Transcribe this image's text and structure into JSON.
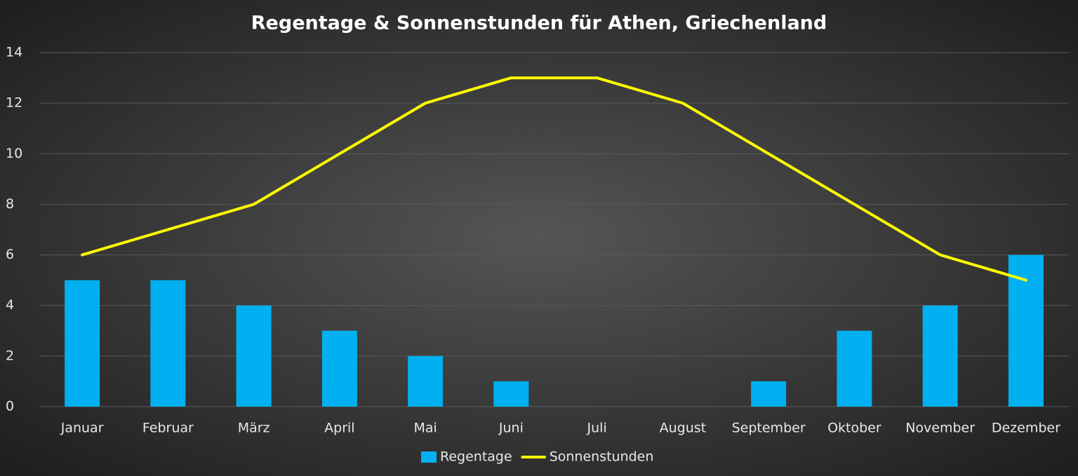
{
  "chart_data": {
    "type": "combo",
    "title": "Regentage & Sonnenstunden für Athen, Griechenland",
    "categories": [
      "Januar",
      "Februar",
      "März",
      "April",
      "Mai",
      "Juni",
      "Juli",
      "August",
      "September",
      "Oktober",
      "November",
      "Dezember"
    ],
    "series": [
      {
        "name": "Regentage",
        "type": "bar",
        "color": "#00b0f0",
        "values": [
          5,
          5,
          4,
          3,
          2,
          1,
          0,
          0,
          1,
          3,
          4,
          6
        ]
      },
      {
        "name": "Sonnenstunden",
        "type": "line",
        "color": "#ffff00",
        "values": [
          6,
          7,
          8,
          10,
          12,
          13,
          13,
          12,
          10,
          8,
          6,
          5
        ]
      }
    ],
    "ylim": [
      0,
      14
    ],
    "yticks": [
      0,
      2,
      4,
      6,
      8,
      10,
      12,
      14
    ],
    "grid": true,
    "legend": "bottom"
  }
}
